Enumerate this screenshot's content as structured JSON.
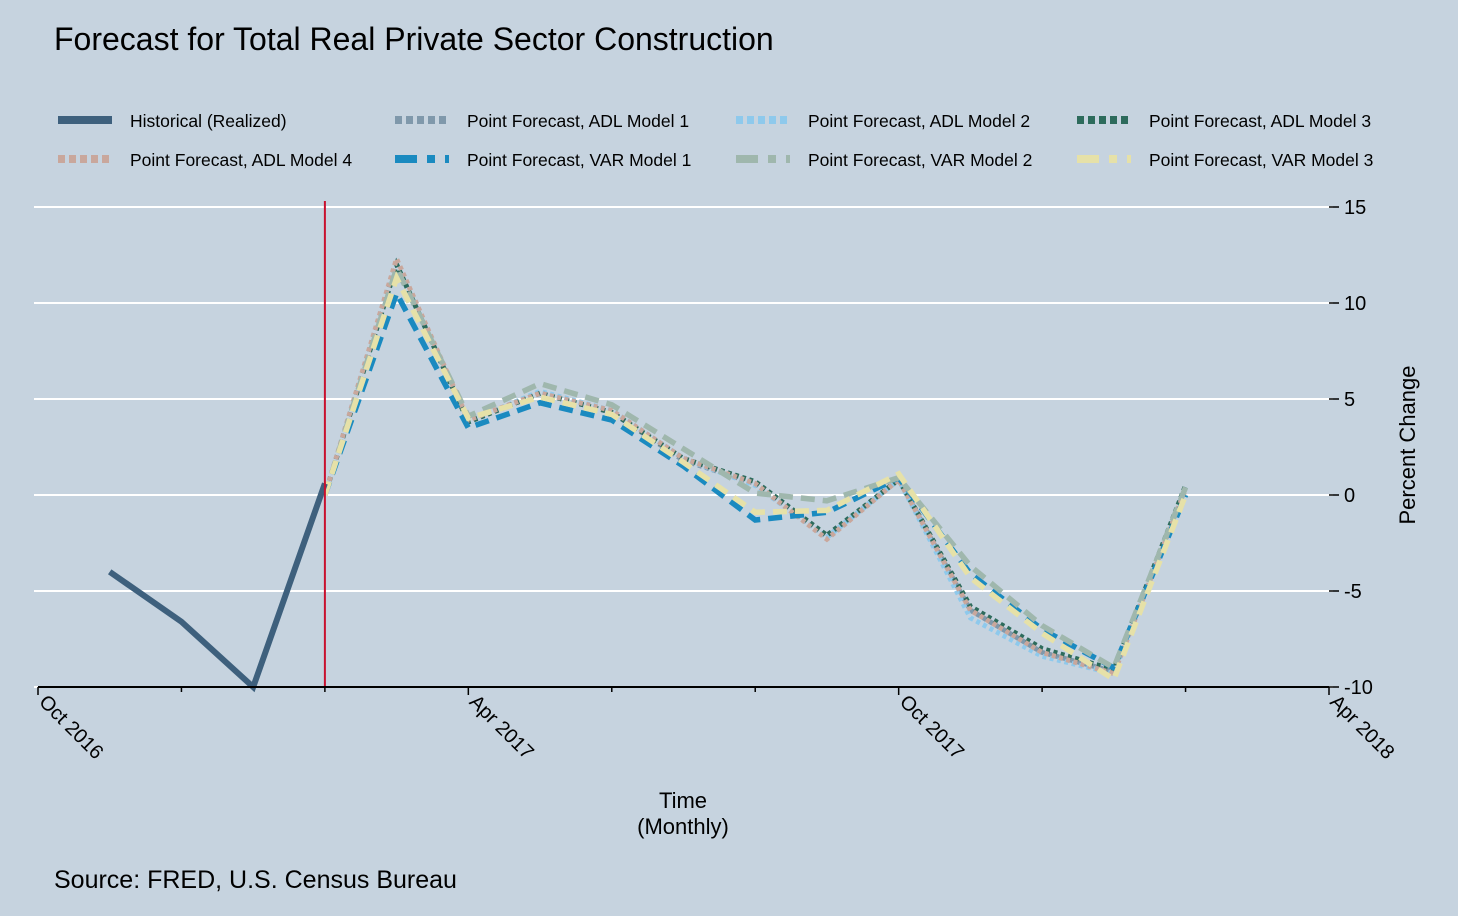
{
  "colors": {
    "background": "#c6d3df",
    "gridline": "#ffffff",
    "forecast_start_line": "#c8102e",
    "axis": "#000000"
  },
  "chart_data": {
    "type": "line",
    "title": "Forecast for Total Real Private Sector Construction",
    "xlabel": "Time",
    "xlabel_sub": "(Monthly)",
    "ylabel": "Percent Change",
    "y_axis_side": "right",
    "ylim": [
      -10,
      15
    ],
    "yticks": [
      15,
      10,
      5,
      0,
      -5,
      -10
    ],
    "xlim": [
      "2016-10",
      "2018-04"
    ],
    "xticks_labeled": [
      "Oct 2016",
      "Apr 2017",
      "Oct 2017",
      "Apr 2018"
    ],
    "xticks_minor_every_months": 2,
    "grid": true,
    "legend_position": "top",
    "forecast_start": "2017-01",
    "source": "Source: FRED, U.S. Census Bureau",
    "series": [
      {
        "name": "Historical (Realized)",
        "color": "#3e607d",
        "style": "solid",
        "x": [
          "2016-11",
          "2016-12",
          "2017-01",
          "2017-02"
        ],
        "y": [
          -4,
          -6.6,
          -10,
          0.6
        ]
      },
      {
        "name": "Point Forecast, ADL Model 1",
        "color": "#7f98ab",
        "style": "dot",
        "x": [
          "2017-02",
          "2017-03",
          "2017-04",
          "2017-05",
          "2017-06",
          "2017-07",
          "2017-08",
          "2017-09",
          "2017-10",
          "2017-11",
          "2017-12",
          "2018-01",
          "2018-02"
        ],
        "y": [
          0,
          12,
          3.8,
          5.3,
          4.3,
          1.8,
          0.6,
          -2.2,
          0.8,
          -6,
          -8.2,
          -9.2,
          0.4
        ]
      },
      {
        "name": "Point Forecast, ADL Model 2",
        "color": "#8ec9ec",
        "style": "dot",
        "x": [
          "2017-02",
          "2017-03",
          "2017-04",
          "2017-05",
          "2017-06",
          "2017-07",
          "2017-08",
          "2017-09",
          "2017-10",
          "2017-11",
          "2017-12",
          "2018-01",
          "2018-02"
        ],
        "y": [
          0,
          12,
          3.8,
          5.4,
          4.4,
          1.9,
          0.5,
          -2.2,
          0.8,
          -6.4,
          -8.4,
          -9.3,
          0.4
        ]
      },
      {
        "name": "Point Forecast, ADL Model 3",
        "color": "#2d6b5c",
        "style": "dot",
        "x": [
          "2017-02",
          "2017-03",
          "2017-04",
          "2017-05",
          "2017-06",
          "2017-07",
          "2017-08",
          "2017-09",
          "2017-10",
          "2017-11",
          "2017-12",
          "2018-01",
          "2018-02"
        ],
        "y": [
          0,
          12,
          3.8,
          5.3,
          4.3,
          1.9,
          0.7,
          -2.1,
          0.8,
          -5.8,
          -8,
          -9.1,
          0.5
        ]
      },
      {
        "name": "Point Forecast, ADL Model 4",
        "color": "#c9a79c",
        "style": "dot",
        "x": [
          "2017-02",
          "2017-03",
          "2017-04",
          "2017-05",
          "2017-06",
          "2017-07",
          "2017-08",
          "2017-09",
          "2017-10",
          "2017-11",
          "2017-12",
          "2018-01",
          "2018-02"
        ],
        "y": [
          0,
          12.3,
          3.9,
          5.3,
          4.4,
          1.9,
          0.6,
          -2.3,
          0.8,
          -6,
          -8.2,
          -9.3,
          0.3
        ]
      },
      {
        "name": "Point Forecast, VAR Model 1",
        "color": "#1a8ac0",
        "style": "dash",
        "x": [
          "2017-02",
          "2017-03",
          "2017-04",
          "2017-05",
          "2017-06",
          "2017-07",
          "2017-08",
          "2017-09",
          "2017-10",
          "2017-11",
          "2017-12",
          "2018-01",
          "2018-02"
        ],
        "y": [
          0,
          10.5,
          3.5,
          4.8,
          3.9,
          1.5,
          -1.3,
          -0.9,
          0.9,
          -4.1,
          -7,
          -9,
          0
        ]
      },
      {
        "name": "Point Forecast, VAR Model 2",
        "color": "#9fb7ad",
        "style": "dash",
        "x": [
          "2017-02",
          "2017-03",
          "2017-04",
          "2017-05",
          "2017-06",
          "2017-07",
          "2017-08",
          "2017-09",
          "2017-10",
          "2017-11",
          "2017-12",
          "2018-01",
          "2018-02"
        ],
        "y": [
          0,
          11.8,
          4.1,
          5.8,
          4.7,
          2.4,
          0.1,
          -0.3,
          0.9,
          -3.7,
          -6.8,
          -9,
          0.4
        ]
      },
      {
        "name": "Point Forecast, VAR Model 3",
        "color": "#e6e1a8",
        "style": "dash",
        "x": [
          "2017-02",
          "2017-03",
          "2017-04",
          "2017-05",
          "2017-06",
          "2017-07",
          "2017-08",
          "2017-09",
          "2017-10",
          "2017-11",
          "2017-12",
          "2018-01",
          "2018-02"
        ],
        "y": [
          0,
          11.3,
          4,
          5.1,
          4.2,
          1.7,
          -0.9,
          -0.8,
          1.1,
          -4.3,
          -7.2,
          -9.6,
          0
        ]
      }
    ]
  }
}
